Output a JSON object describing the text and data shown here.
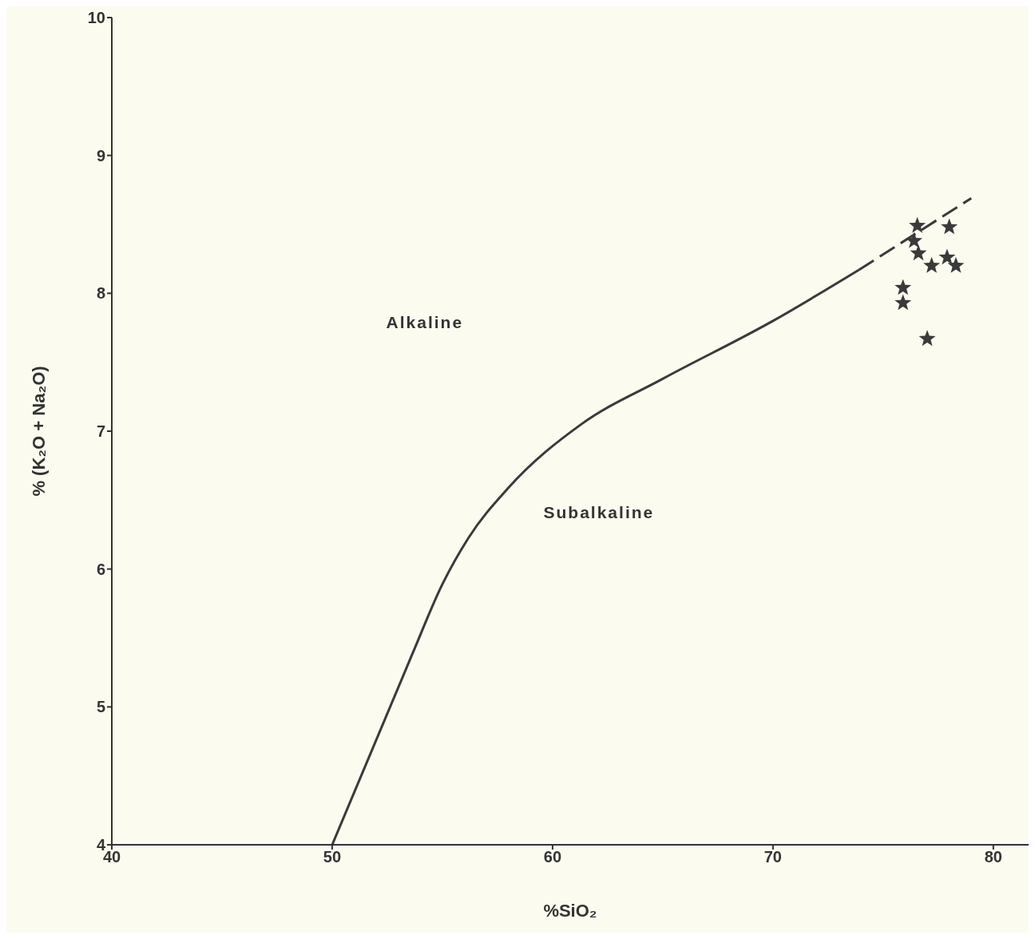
{
  "chart_data": {
    "type": "scatter",
    "xlabel": "%SiO₂",
    "ylabel": "% (K₂O + Na₂O)",
    "xlim": [
      40,
      81.6
    ],
    "xticks": [
      40,
      50,
      60,
      70,
      80
    ],
    "ylim": [
      4,
      10
    ],
    "yticks": [
      4,
      5,
      6,
      7,
      8,
      9,
      10
    ],
    "grid": false,
    "annotations": [
      "Alkaline",
      "Subalkaline"
    ],
    "series": [
      {
        "type": "line",
        "color": "#3a3a3a",
        "line_style": "solid",
        "marker": "none",
        "x": [
          50,
          53.6,
          55.0,
          56.2,
          58.0,
          61.3,
          65,
          70,
          73.9
        ],
        "values": [
          4,
          5.37,
          5.89,
          6.23,
          6.59,
          7.05,
          7.38,
          7.8,
          8.17
        ]
      },
      {
        "type": "line",
        "color": "#3a3a3a",
        "line_style": "dashed",
        "marker": "none",
        "x": [
          73.9,
          79
        ],
        "values": [
          8.17,
          8.69
        ]
      },
      {
        "color": "#3a3a3a",
        "marker": "star",
        "x": [
          76.55,
          78.0,
          76.4,
          76.6,
          77.2,
          77.9,
          78.3,
          75.9,
          75.9,
          77.0
        ],
        "values": [
          8.49,
          8.48,
          8.38,
          8.29,
          8.2,
          8.26,
          8.2,
          8.04,
          7.93,
          7.67
        ]
      }
    ]
  }
}
